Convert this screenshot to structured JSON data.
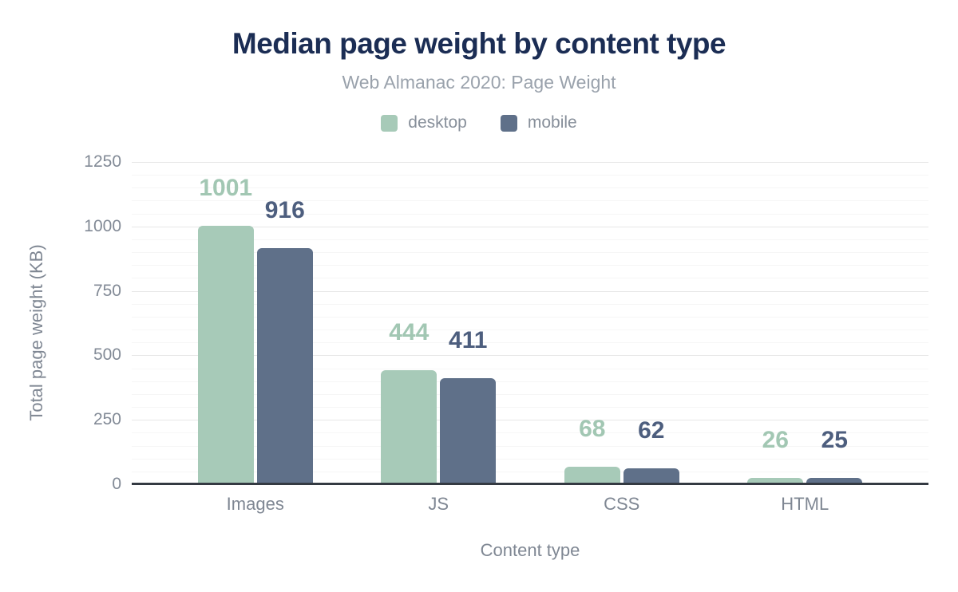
{
  "chart": {
    "title": "Median page weight by content type",
    "subtitle": "Web Almanac 2020: Page Weight",
    "y_axis_title": "Total page weight (KB)",
    "x_axis_title": "Content type"
  },
  "colors": {
    "desktop_bar": "#a7cab8",
    "mobile_bar": "#5f7089",
    "desktop_value_label": "#a2c7b3",
    "mobile_value_label": "#4d5e7e",
    "title_text": "#1b2d54",
    "subtitle_text": "#9aa2ac",
    "axis_text": "#7f8793",
    "legend_text": "#878f9a",
    "grid_major": "#e7e7e7",
    "grid_minor": "#f6f6f6",
    "axis_line": "#343a42"
  },
  "chart_data": {
    "type": "bar",
    "title": "Median page weight by content type",
    "subtitle": "Web Almanac 2020: Page Weight",
    "categories": [
      "Images",
      "JS",
      "CSS",
      "HTML"
    ],
    "series": [
      {
        "name": "desktop",
        "color": "#a7cab8",
        "label_color": "#a2c7b3",
        "values": [
          1001,
          444,
          68,
          26
        ]
      },
      {
        "name": "mobile",
        "color": "#5f7089",
        "label_color": "#4d5e7e",
        "values": [
          916,
          411,
          62,
          25
        ]
      }
    ],
    "xlabel": "Content type",
    "ylabel": "Total page weight (KB)",
    "ylim": [
      0,
      1250
    ],
    "y_ticks": [
      0,
      250,
      500,
      750,
      1000,
      1250
    ],
    "y_minor_step": 50,
    "grid": true,
    "legend_position": "top",
    "value_labels": true
  }
}
